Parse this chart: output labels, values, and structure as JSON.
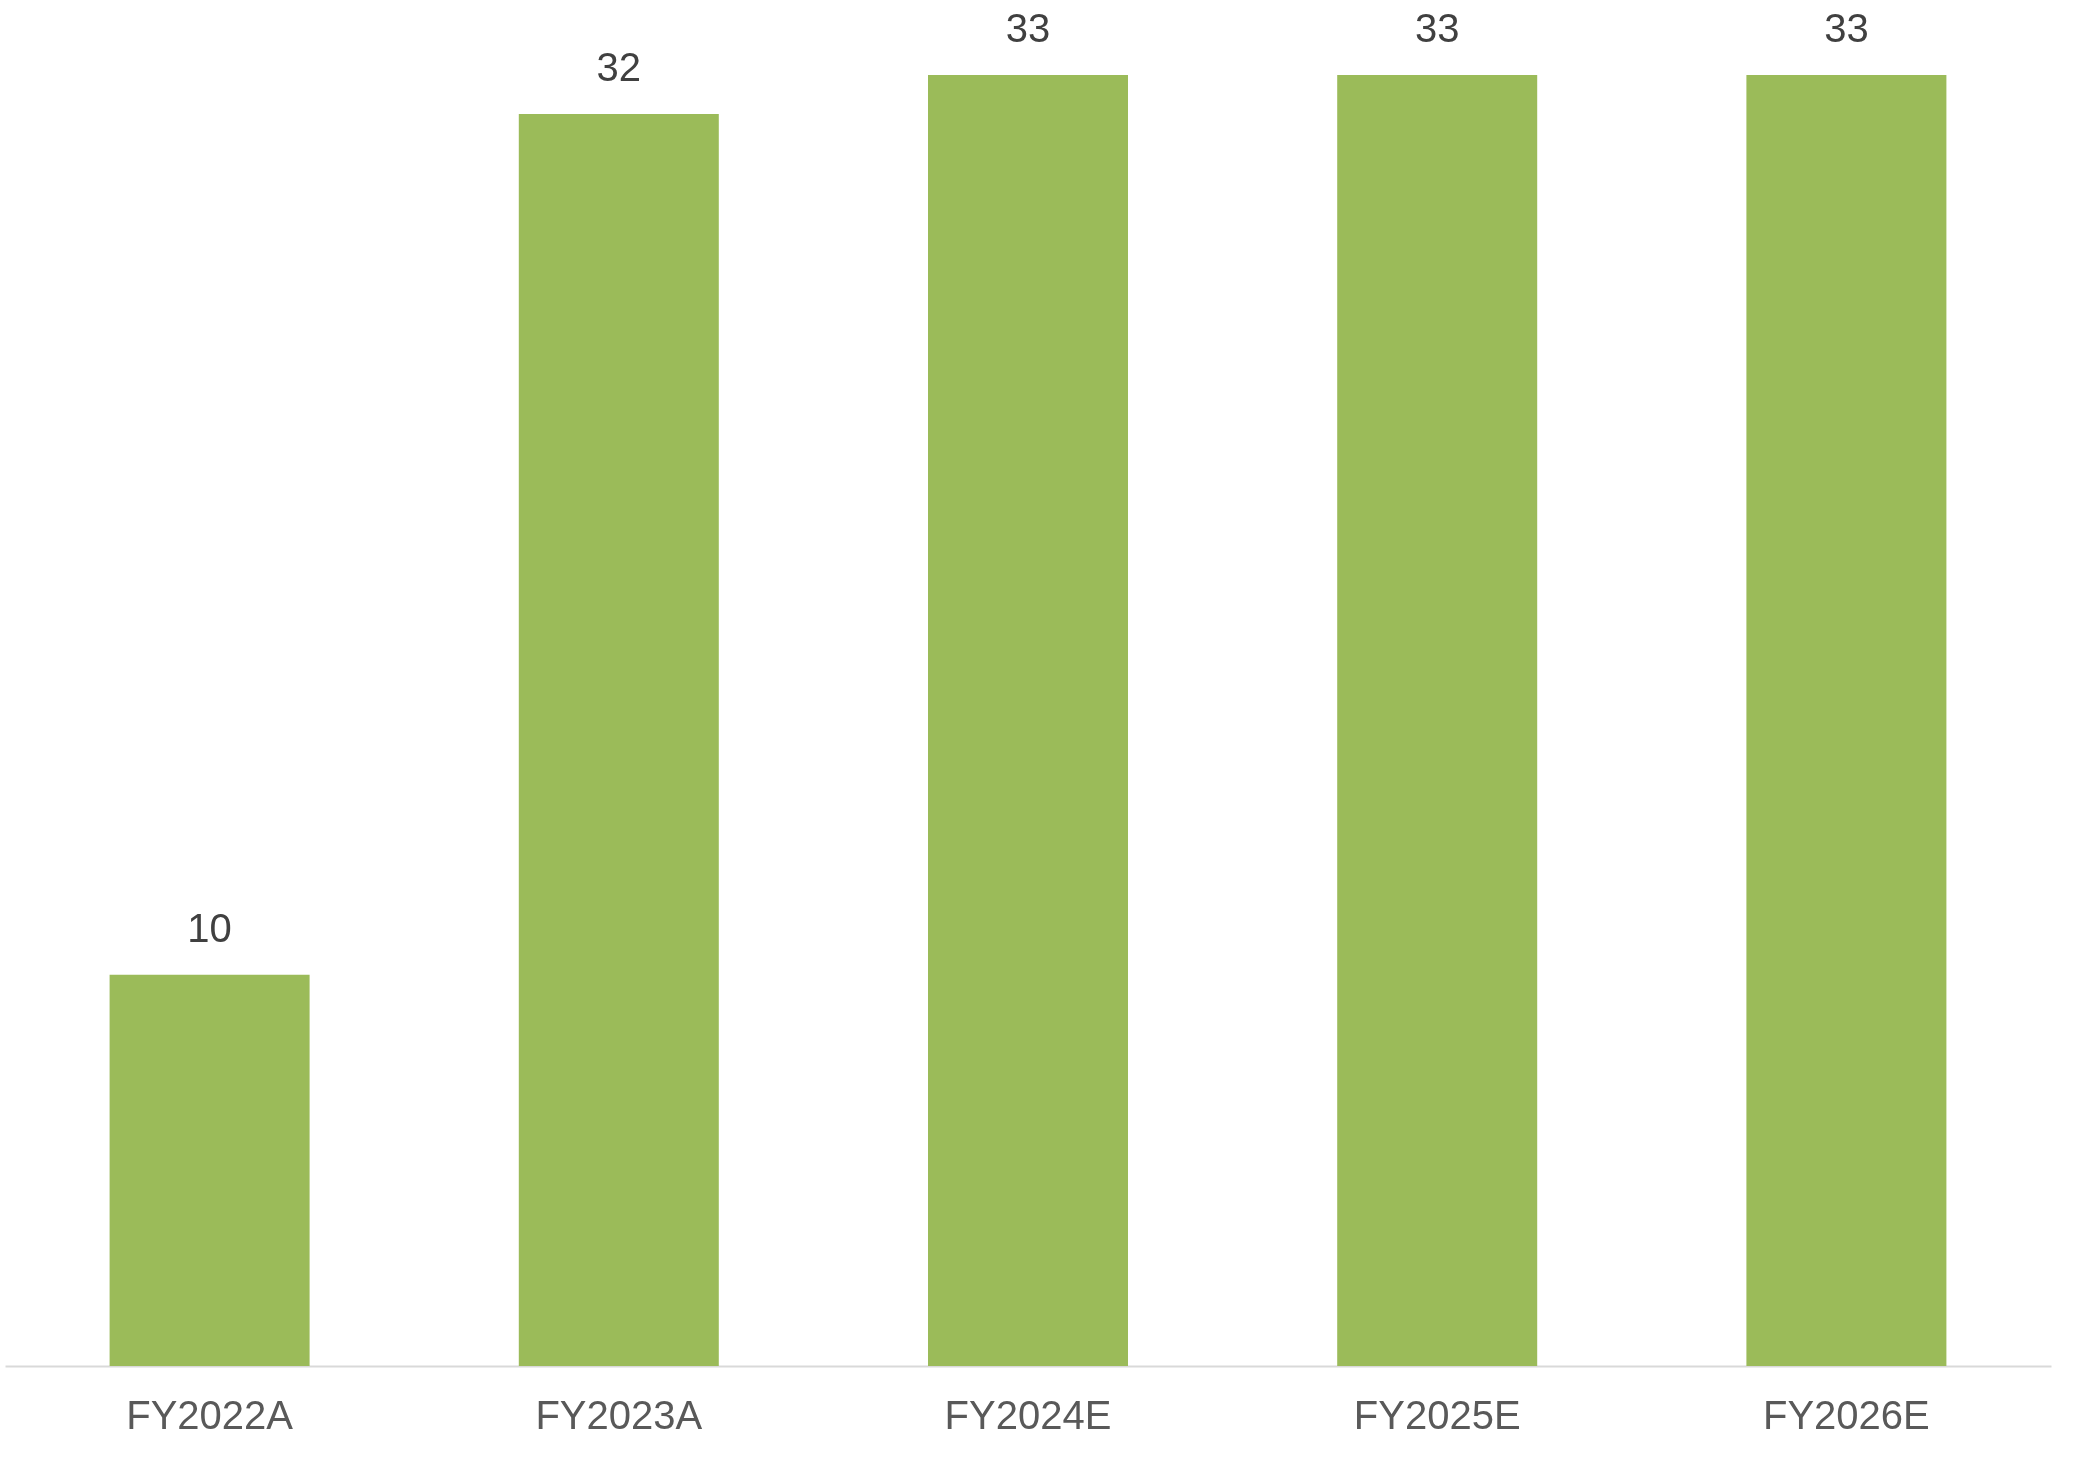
{
  "chart_data": {
    "type": "bar",
    "categories": [
      "FY2022A",
      "FY2023A",
      "FY2024E",
      "FY2025E",
      "FY2026E"
    ],
    "values": [
      10,
      32,
      33,
      33,
      33
    ],
    "color": "#9bbb59",
    "data_labels": true,
    "grid": false
  }
}
